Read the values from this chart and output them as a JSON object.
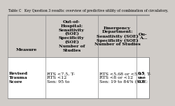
{
  "title": "Table C   Key Question 3 results: overview of predictive utility of combination of circulatory,",
  "bg_color": "#d0ccc8",
  "header_bg": "#d0ccc8",
  "col_headers": [
    "Out-of-\nHospital:\nSensitivity\n(SOE)\nSpecificity\n(SOE)\nNumber of\nStudies",
    "Emergency\nDepartment:\nSensitivity (SOE)\nSpecificity (SOE)\nNumber of Studies",
    "Ou-\nA..."
  ],
  "row_label_col": "Measure",
  "rows": [
    {
      "label": "Revised\nTrauma\nScore",
      "col1": "RTS <7.5, T-\nRTS <12\nSen: 95 to",
      "col2": "RTS <5.68 or <5.97, T-\nRTS <8 or <12\nSen: 19 to 84% (SOE:",
      "col3": "0.5\nuse\n0.8"
    }
  ],
  "header_font_size": 4.5,
  "body_font_size": 4.5,
  "title_font_size": 3.5,
  "outer_border_color": "#888888",
  "row_bg_white": "#ffffff",
  "row_bg_gray": "#d0ccc8"
}
